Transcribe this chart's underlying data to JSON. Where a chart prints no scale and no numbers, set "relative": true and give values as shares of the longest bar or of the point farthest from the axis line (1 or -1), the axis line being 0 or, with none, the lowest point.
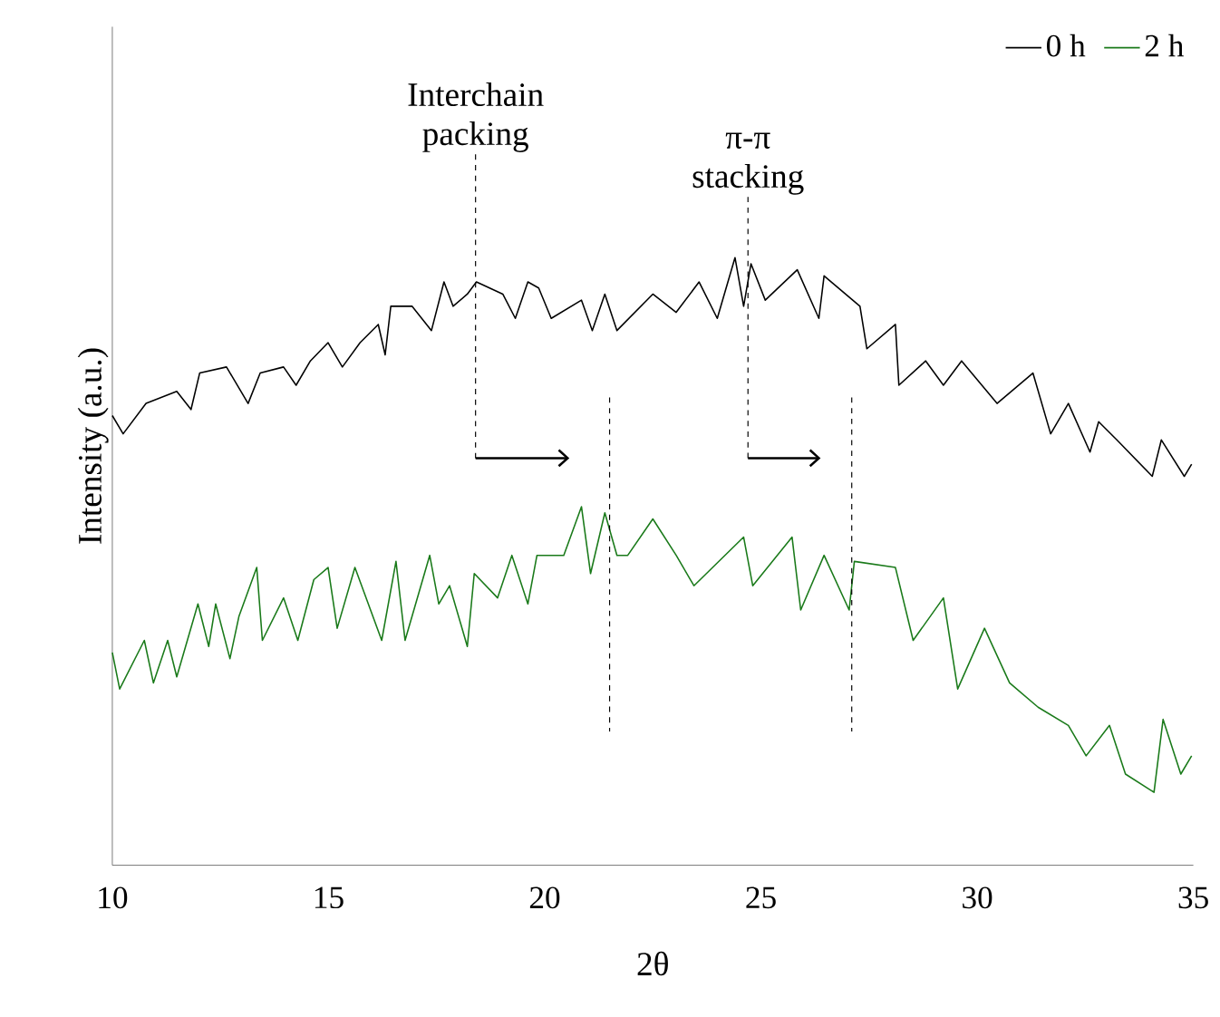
{
  "chart_data": {
    "type": "line",
    "relative": true,
    "xlabel": "2θ",
    "ylabel": "Intensity (a.u.)",
    "xlim": [
      10,
      35
    ],
    "xticks": [
      10,
      15,
      20,
      25,
      30,
      35
    ],
    "legend": "top right",
    "series": [
      {
        "name": "0 h",
        "color": "#000000",
        "x": [
          10.0,
          10.25,
          10.78,
          11.49,
          11.82,
          12.02,
          12.64,
          13.14,
          13.42,
          13.96,
          14.25,
          14.58,
          14.99,
          15.32,
          15.73,
          16.15,
          16.31,
          16.44,
          16.93,
          17.38,
          17.67,
          17.88,
          18.21,
          18.42,
          19.03,
          19.32,
          19.61,
          19.86,
          20.15,
          20.85,
          21.1,
          21.39,
          21.67,
          22.5,
          23.04,
          23.57,
          23.99,
          24.4,
          24.6,
          24.77,
          25.1,
          25.84,
          26.34,
          26.46,
          27.29,
          27.45,
          28.11,
          28.19,
          28.81,
          29.22,
          29.64,
          30.46,
          31.29,
          31.7,
          32.11,
          32.61,
          32.81,
          33.23,
          34.05,
          34.26,
          34.79,
          34.96
        ],
        "values": [
          0.74,
          0.71,
          0.76,
          0.78,
          0.75,
          0.81,
          0.82,
          0.76,
          0.81,
          0.82,
          0.79,
          0.83,
          0.86,
          0.82,
          0.86,
          0.89,
          0.84,
          0.92,
          0.92,
          0.88,
          0.96,
          0.92,
          0.94,
          0.96,
          0.94,
          0.9,
          0.96,
          0.95,
          0.9,
          0.93,
          0.88,
          0.94,
          0.88,
          0.94,
          0.91,
          0.96,
          0.9,
          1.0,
          0.92,
          0.99,
          0.93,
          0.98,
          0.9,
          0.97,
          0.92,
          0.85,
          0.89,
          0.79,
          0.83,
          0.79,
          0.83,
          0.76,
          0.81,
          0.71,
          0.76,
          0.68,
          0.73,
          0.7,
          0.64,
          0.7,
          0.64,
          0.66
        ]
      },
      {
        "name": "2 h",
        "color": "#1a7a1a",
        "x": [
          10.0,
          10.17,
          10.74,
          10.95,
          11.28,
          11.49,
          11.98,
          12.23,
          12.39,
          12.72,
          12.93,
          13.34,
          13.47,
          13.96,
          14.29,
          14.66,
          14.99,
          15.2,
          15.61,
          16.23,
          16.56,
          16.77,
          17.34,
          17.55,
          17.8,
          18.21,
          18.37,
          18.91,
          19.24,
          19.61,
          19.82,
          20.44,
          20.85,
          21.06,
          21.39,
          21.67,
          21.92,
          22.5,
          23.04,
          23.45,
          24.6,
          24.81,
          25.72,
          25.92,
          26.46,
          27.04,
          27.16,
          28.11,
          28.52,
          29.22,
          29.55,
          30.17,
          30.75,
          31.41,
          32.11,
          32.52,
          33.06,
          33.43,
          34.09,
          34.3,
          34.71,
          34.96
        ],
        "values": [
          0.35,
          0.29,
          0.37,
          0.3,
          0.37,
          0.31,
          0.43,
          0.36,
          0.43,
          0.34,
          0.41,
          0.49,
          0.37,
          0.44,
          0.37,
          0.47,
          0.49,
          0.39,
          0.49,
          0.37,
          0.5,
          0.37,
          0.51,
          0.43,
          0.46,
          0.36,
          0.48,
          0.44,
          0.51,
          0.43,
          0.51,
          0.51,
          0.59,
          0.48,
          0.58,
          0.51,
          0.51,
          0.57,
          0.51,
          0.46,
          0.54,
          0.46,
          0.54,
          0.42,
          0.51,
          0.42,
          0.5,
          0.49,
          0.37,
          0.44,
          0.29,
          0.39,
          0.3,
          0.26,
          0.23,
          0.18,
          0.23,
          0.15,
          0.12,
          0.24,
          0.15,
          0.18
        ]
      }
    ],
    "ref_lines": [
      {
        "axis": "x",
        "value": 18.4,
        "label": "Interchain packing",
        "line_style": "dashed"
      },
      {
        "axis": "x",
        "value": 24.7,
        "label": "π-π stacking",
        "line_style": "dashed"
      },
      {
        "axis": "x",
        "value": 21.5,
        "line_style": "dashed"
      },
      {
        "axis": "x",
        "value": 27.1,
        "line_style": "dashed"
      }
    ]
  }
}
